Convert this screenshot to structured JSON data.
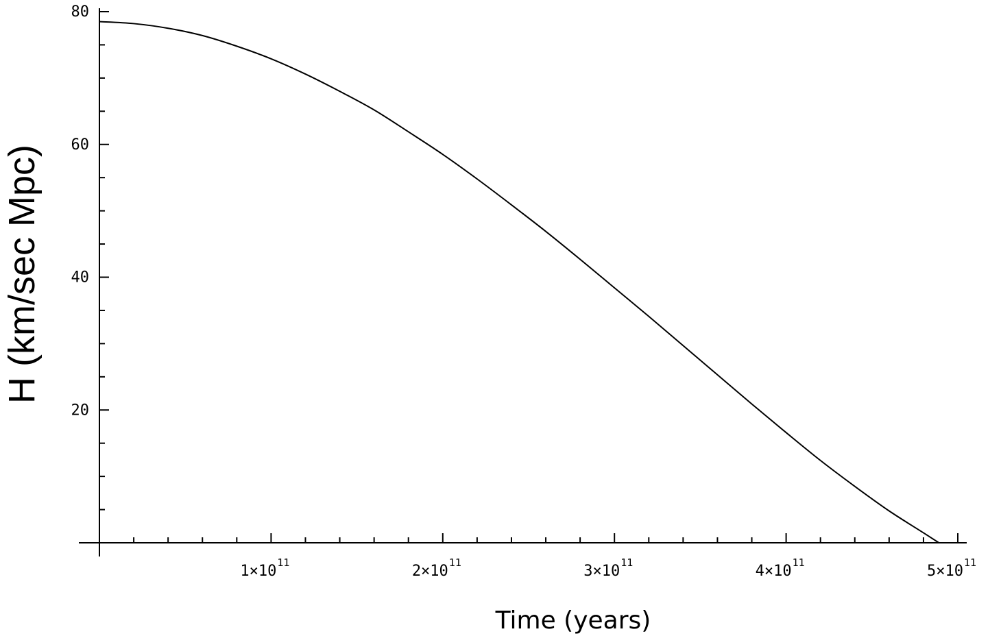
{
  "chart_data": {
    "type": "line",
    "title": "",
    "xlabel": "Time (years)",
    "ylabel": "H (km/sec Mpc)",
    "xlim": [
      0,
      500000000000.0
    ],
    "ylim": [
      0,
      80
    ],
    "x_tick_labels": [
      {
        "value": 100000000000.0,
        "mantissa": "1×10",
        "exponent": "11"
      },
      {
        "value": 200000000000.0,
        "mantissa": "2×10",
        "exponent": "11"
      },
      {
        "value": 300000000000.0,
        "mantissa": "3×10",
        "exponent": "11"
      },
      {
        "value": 400000000000.0,
        "mantissa": "4×10",
        "exponent": "11"
      },
      {
        "value": 500000000000.0,
        "mantissa": "5×10",
        "exponent": "11"
      }
    ],
    "y_tick_labels": [
      {
        "value": 20,
        "label": "20"
      },
      {
        "value": 40,
        "label": "40"
      },
      {
        "value": 60,
        "label": "60"
      },
      {
        "value": 80,
        "label": "80"
      }
    ],
    "x_minor_step": 20000000000.0,
    "y_minor_step": 5,
    "grid": false,
    "legend": "none",
    "series": [
      {
        "color": "#000000",
        "x": [
          0,
          20000000000.0,
          40000000000.0,
          60000000000.0,
          80000000000.0,
          100000000000.0,
          120000000000.0,
          140000000000.0,
          160000000000.0,
          180000000000.0,
          200000000000.0,
          220000000000.0,
          240000000000.0,
          260000000000.0,
          280000000000.0,
          300000000000.0,
          320000000000.0,
          340000000000.0,
          360000000000.0,
          380000000000.0,
          400000000000.0,
          420000000000.0,
          440000000000.0,
          460000000000.0,
          480000000000.0,
          489000000000.0
        ],
        "values": [
          78.5,
          78.2,
          77.5,
          76.4,
          74.8,
          72.9,
          70.6,
          68.0,
          65.2,
          61.9,
          58.5,
          54.8,
          50.9,
          46.9,
          42.7,
          38.4,
          34.1,
          29.7,
          25.3,
          20.9,
          16.6,
          12.4,
          8.5,
          4.8,
          1.5,
          0.0
        ]
      }
    ]
  }
}
